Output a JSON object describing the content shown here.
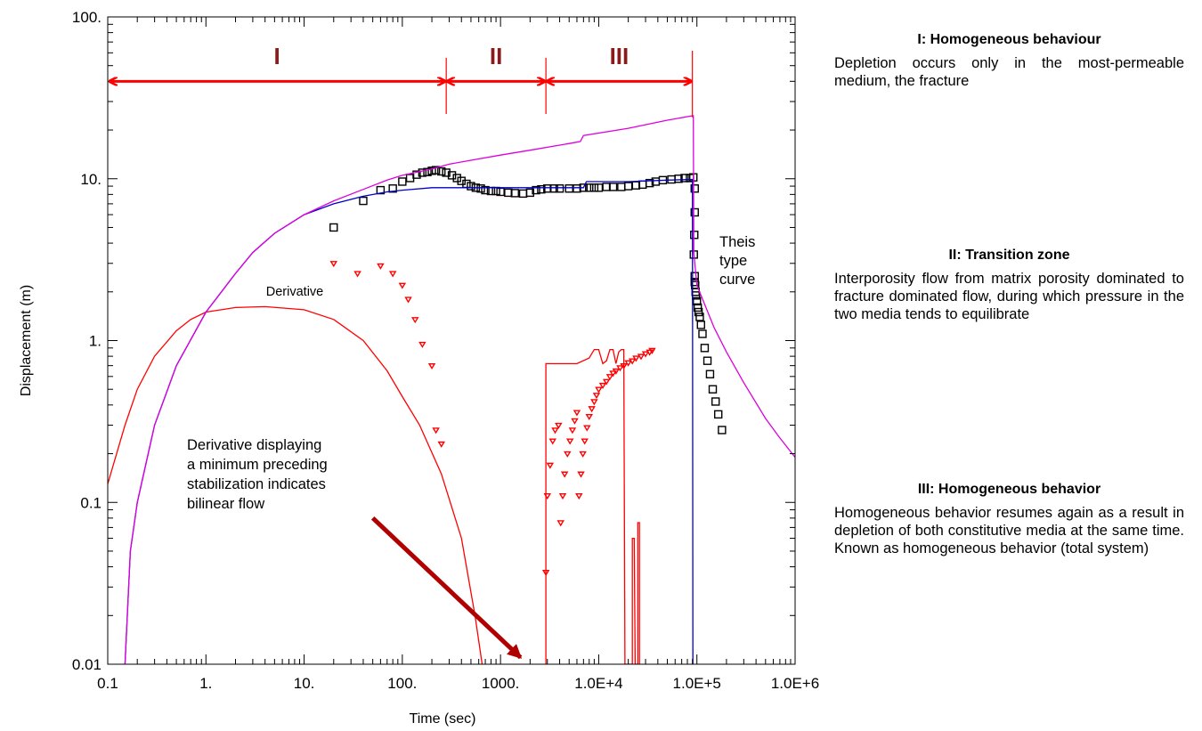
{
  "chart_data": {
    "type": "scatter",
    "title": "",
    "xlabel": "Time (sec)",
    "ylabel": "Displacement (m)",
    "xscale": "log",
    "yscale": "log",
    "xlim": [
      0.1,
      1000000
    ],
    "ylim": [
      0.01,
      100
    ],
    "grid": false,
    "x_ticks": [
      {
        "value": 0.1,
        "label": "0.1"
      },
      {
        "value": 1,
        "label": "1."
      },
      {
        "value": 10,
        "label": "10."
      },
      {
        "value": 100,
        "label": "100."
      },
      {
        "value": 1000,
        "label": "1000."
      },
      {
        "value": 10000,
        "label": "1.0E+4"
      },
      {
        "value": 100000,
        "label": "1.0E+5"
      },
      {
        "value": 1000000,
        "label": "1.0E+6"
      }
    ],
    "y_ticks": [
      {
        "value": 0.01,
        "label": "0.01"
      },
      {
        "value": 0.1,
        "label": "0.1"
      },
      {
        "value": 1,
        "label": "1."
      },
      {
        "value": 10,
        "label": "10."
      },
      {
        "value": 100,
        "label": "100."
      }
    ],
    "regions": [
      {
        "label": "I",
        "x_start": 0.1,
        "x_end": 280
      },
      {
        "label": "II",
        "x_start": 280,
        "x_end": 2900
      },
      {
        "label": "III",
        "x_start": 2900,
        "x_end": 90000
      }
    ],
    "annotations": {
      "derivative": "Derivative",
      "bilinear_lines": [
        "Derivative  displaying",
        "a minimum preceding",
        "stabilization indicates",
        "bilinear flow"
      ],
      "theis_lines": [
        "Theis",
        "type",
        "curve"
      ]
    },
    "arrow": {
      "from": [
        50,
        0.08
      ],
      "to": [
        1600,
        0.011
      ]
    },
    "colors": {
      "pressure": "#000000",
      "derivative": "#ff0000",
      "blue": "#0000cc",
      "magenta": "#dd00dd",
      "region": "#8b1a1a",
      "arrow": "#b00000",
      "region_arrow": "#ff0000"
    },
    "series": [
      {
        "kind": "markers-square",
        "color": "#000000",
        "points": [
          [
            20,
            5.0
          ],
          [
            40,
            7.3
          ],
          [
            60,
            8.5
          ],
          [
            80,
            8.7
          ],
          [
            100,
            9.6
          ],
          [
            120,
            10.1
          ],
          [
            140,
            10.6
          ],
          [
            160,
            10.9
          ],
          [
            180,
            11.0
          ],
          [
            200,
            11.2
          ],
          [
            220,
            11.3
          ],
          [
            250,
            11.1
          ],
          [
            280,
            10.9
          ],
          [
            320,
            10.5
          ],
          [
            360,
            10.1
          ],
          [
            400,
            9.7
          ],
          [
            450,
            9.3
          ],
          [
            500,
            9.0
          ],
          [
            560,
            8.8
          ],
          [
            630,
            8.7
          ],
          [
            700,
            8.5
          ],
          [
            800,
            8.4
          ],
          [
            900,
            8.4
          ],
          [
            1000,
            8.3
          ],
          [
            1200,
            8.2
          ],
          [
            1400,
            8.15
          ],
          [
            1700,
            8.1
          ],
          [
            2000,
            8.2
          ],
          [
            2300,
            8.5
          ],
          [
            2600,
            8.6
          ],
          [
            3000,
            8.7
          ],
          [
            3500,
            8.7
          ],
          [
            4000,
            8.7
          ],
          [
            5000,
            8.7
          ],
          [
            6000,
            8.7
          ],
          [
            7000,
            8.8
          ],
          [
            8000,
            8.8
          ],
          [
            9000,
            8.8
          ],
          [
            10000,
            8.8
          ],
          [
            12000,
            8.9
          ],
          [
            14000,
            8.9
          ],
          [
            17000,
            8.9
          ],
          [
            20000,
            9.0
          ],
          [
            24000,
            9.1
          ],
          [
            28000,
            9.2
          ],
          [
            33000,
            9.4
          ],
          [
            38000,
            9.6
          ],
          [
            45000,
            9.8
          ],
          [
            55000,
            9.9
          ],
          [
            65000,
            10.0
          ],
          [
            75000,
            10.1
          ],
          [
            85000,
            10.1
          ],
          [
            92000,
            10.2
          ],
          [
            95000,
            8.7
          ],
          [
            95000,
            6.2
          ],
          [
            94000,
            4.5
          ],
          [
            93000,
            3.4
          ],
          [
            95000,
            2.5
          ],
          [
            95000,
            2.3
          ],
          [
            96000,
            2.2
          ],
          [
            97000,
            2.0
          ],
          [
            98000,
            1.9
          ],
          [
            100000,
            1.75
          ],
          [
            102000,
            1.6
          ],
          [
            104000,
            1.5
          ],
          [
            107000,
            1.4
          ],
          [
            110000,
            1.25
          ],
          [
            114000,
            1.1
          ],
          [
            120000,
            0.9
          ],
          [
            128000,
            0.75
          ],
          [
            136000,
            0.62
          ],
          [
            145000,
            0.5
          ],
          [
            155000,
            0.42
          ],
          [
            165000,
            0.35
          ],
          [
            180000,
            0.28
          ]
        ]
      },
      {
        "kind": "markers-triangle",
        "color": "#ff0000",
        "points": [
          [
            20,
            3.0
          ],
          [
            35,
            2.6
          ],
          [
            60,
            2.9
          ],
          [
            80,
            2.6
          ],
          [
            100,
            2.2
          ],
          [
            115,
            1.8
          ],
          [
            135,
            1.35
          ],
          [
            160,
            0.95
          ],
          [
            200,
            0.7
          ],
          [
            220,
            0.28
          ],
          [
            250,
            0.23
          ],
          [
            2900,
            0.037
          ],
          [
            3000,
            0.11
          ],
          [
            3200,
            0.17
          ],
          [
            3400,
            0.24
          ],
          [
            3600,
            0.28
          ],
          [
            3900,
            0.3
          ],
          [
            4100,
            0.075
          ],
          [
            4300,
            0.11
          ],
          [
            4500,
            0.15
          ],
          [
            4800,
            0.2
          ],
          [
            5100,
            0.24
          ],
          [
            5400,
            0.28
          ],
          [
            5700,
            0.32
          ],
          [
            6000,
            0.36
          ],
          [
            6300,
            0.11
          ],
          [
            6600,
            0.15
          ],
          [
            6900,
            0.2
          ],
          [
            7200,
            0.24
          ],
          [
            7600,
            0.29
          ],
          [
            8000,
            0.34
          ],
          [
            8500,
            0.38
          ],
          [
            9000,
            0.42
          ],
          [
            9500,
            0.46
          ],
          [
            10000,
            0.5
          ],
          [
            11000,
            0.53
          ],
          [
            12000,
            0.56
          ],
          [
            13000,
            0.6
          ],
          [
            14000,
            0.63
          ],
          [
            15000,
            0.65
          ],
          [
            16500,
            0.68
          ],
          [
            18000,
            0.7
          ],
          [
            20000,
            0.73
          ],
          [
            22000,
            0.75
          ],
          [
            24000,
            0.78
          ],
          [
            27000,
            0.8
          ],
          [
            30000,
            0.83
          ],
          [
            33000,
            0.85
          ],
          [
            35000,
            0.87
          ]
        ]
      },
      {
        "kind": "line",
        "color": "#ff0000",
        "points": [
          [
            0.1,
            0.13
          ],
          [
            0.15,
            0.3
          ],
          [
            0.2,
            0.5
          ],
          [
            0.3,
            0.8
          ],
          [
            0.5,
            1.15
          ],
          [
            0.7,
            1.35
          ],
          [
            1,
            1.5
          ],
          [
            2,
            1.6
          ],
          [
            4,
            1.62
          ],
          [
            10,
            1.55
          ],
          [
            20,
            1.35
          ],
          [
            40,
            1.0
          ],
          [
            70,
            0.65
          ],
          [
            100,
            0.45
          ],
          [
            150,
            0.3
          ],
          [
            250,
            0.15
          ],
          [
            400,
            0.06
          ],
          [
            550,
            0.02
          ],
          [
            650,
            0.01
          ]
        ]
      },
      {
        "kind": "line",
        "color": "#ff0000",
        "points": [
          [
            2900,
            0.01
          ],
          [
            2900,
            0.72
          ],
          [
            6000,
            0.72
          ],
          [
            8000,
            0.78
          ],
          [
            9000,
            0.88
          ],
          [
            10000,
            0.88
          ],
          [
            11000,
            0.72
          ],
          [
            12000,
            0.75
          ],
          [
            13000,
            0.88
          ],
          [
            14000,
            0.88
          ],
          [
            15000,
            0.72
          ],
          [
            16000,
            0.85
          ],
          [
            17000,
            0.88
          ],
          [
            18000,
            0.88
          ],
          [
            18500,
            0.01
          ],
          [
            22000,
            0.01
          ],
          [
            22000,
            0.06
          ],
          [
            23000,
            0.06
          ],
          [
            23500,
            0.01
          ],
          [
            25000,
            0.01
          ],
          [
            25000,
            0.075
          ],
          [
            26000,
            0.075
          ],
          [
            26000,
            0.01
          ]
        ]
      },
      {
        "kind": "line",
        "color": "#0000cc",
        "points": [
          [
            0.15,
            0.01
          ],
          [
            0.17,
            0.05
          ],
          [
            0.2,
            0.1
          ],
          [
            0.3,
            0.3
          ],
          [
            0.5,
            0.7
          ],
          [
            1,
            1.5
          ],
          [
            2,
            2.6
          ],
          [
            3,
            3.5
          ],
          [
            5,
            4.6
          ],
          [
            10,
            6.0
          ],
          [
            20,
            7.0
          ],
          [
            40,
            7.8
          ],
          [
            70,
            8.3
          ],
          [
            100,
            8.5
          ],
          [
            200,
            8.8
          ],
          [
            300,
            8.8
          ],
          [
            500,
            8.8
          ],
          [
            1000,
            8.8
          ],
          [
            3000,
            8.8
          ],
          [
            7000,
            8.8
          ],
          [
            7500,
            9.6
          ],
          [
            20000,
            9.6
          ],
          [
            50000,
            9.8
          ],
          [
            90000,
            9.9
          ],
          [
            91000,
            0.01
          ]
        ]
      },
      {
        "kind": "line",
        "color": "#dd00dd",
        "points": [
          [
            0.15,
            0.01
          ],
          [
            0.17,
            0.05
          ],
          [
            0.2,
            0.1
          ],
          [
            0.3,
            0.3
          ],
          [
            0.5,
            0.7
          ],
          [
            1,
            1.5
          ],
          [
            2,
            2.6
          ],
          [
            3,
            3.5
          ],
          [
            5,
            4.6
          ],
          [
            10,
            6.0
          ],
          [
            20,
            7.3
          ],
          [
            40,
            8.6
          ],
          [
            70,
            9.8
          ],
          [
            100,
            10.5
          ],
          [
            200,
            11.5
          ],
          [
            300,
            12.3
          ],
          [
            500,
            13.0
          ],
          [
            1000,
            14.0
          ],
          [
            2000,
            15.0
          ],
          [
            5000,
            16.5
          ],
          [
            6500,
            17.0
          ],
          [
            7000,
            18.5
          ],
          [
            20000,
            20.5
          ],
          [
            50000,
            23.0
          ],
          [
            90000,
            24.5
          ],
          [
            92000,
            24.5
          ],
          [
            93000,
            3.5
          ],
          [
            100000,
            2.2
          ],
          [
            150000,
            1.2
          ],
          [
            200000,
            0.85
          ],
          [
            300000,
            0.55
          ],
          [
            500000,
            0.33
          ],
          [
            700000,
            0.25
          ],
          [
            1000000,
            0.19
          ]
        ]
      }
    ]
  },
  "panels": [
    {
      "title": "I: Homogeneous behaviour",
      "text": "Depletion occurs only in the most-permeable medium, the fracture"
    },
    {
      "title": "II: Transition zone",
      "text": "Interporosity flow from matrix porosity dominated to fracture dominated flow, during which pressure in the two media tends to equilibrate"
    },
    {
      "title": "III: Homogeneous behavior",
      "text": "Homogeneous behavior resumes again as a result in depletion of both constitutive media at the same time. Known as homogeneous behavior (total system)"
    }
  ]
}
